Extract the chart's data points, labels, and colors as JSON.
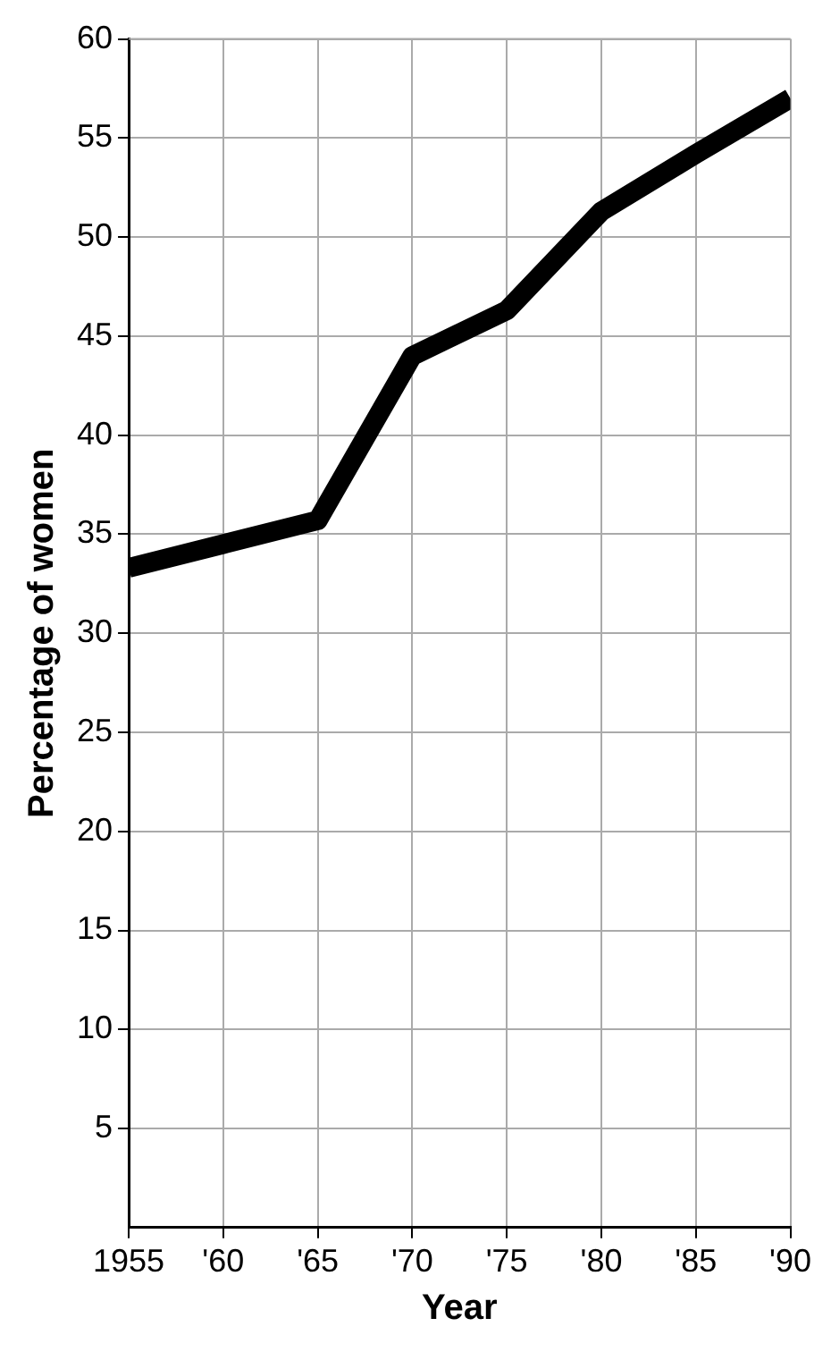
{
  "chart_data": {
    "type": "line",
    "xlabel": "Year",
    "ylabel": "Percentage of women",
    "x": [
      1955,
      1960,
      1965,
      1970,
      1975,
      1980,
      1985,
      1990
    ],
    "series": [
      {
        "color": "#000000",
        "values": [
          33.3,
          34.5,
          35.7,
          44,
          46.3,
          51.3,
          54.2,
          57
        ]
      }
    ],
    "xlim": [
      1955,
      1990
    ],
    "xticks": [
      {
        "value": 1955,
        "label": "1955"
      },
      {
        "value": 1960,
        "label": "'60"
      },
      {
        "value": 1965,
        "label": "'65"
      },
      {
        "value": 1970,
        "label": "'70"
      },
      {
        "value": 1975,
        "label": "'75"
      },
      {
        "value": 1980,
        "label": "'80"
      },
      {
        "value": 1985,
        "label": "'85"
      },
      {
        "value": 1990,
        "label": "'90"
      }
    ],
    "ylim": [
      0,
      60
    ],
    "yticks": [
      5,
      10,
      15,
      20,
      25,
      30,
      35,
      40,
      45,
      50,
      55,
      60
    ],
    "grid": true,
    "legend": false,
    "marker": "none",
    "line_style": "solid"
  }
}
